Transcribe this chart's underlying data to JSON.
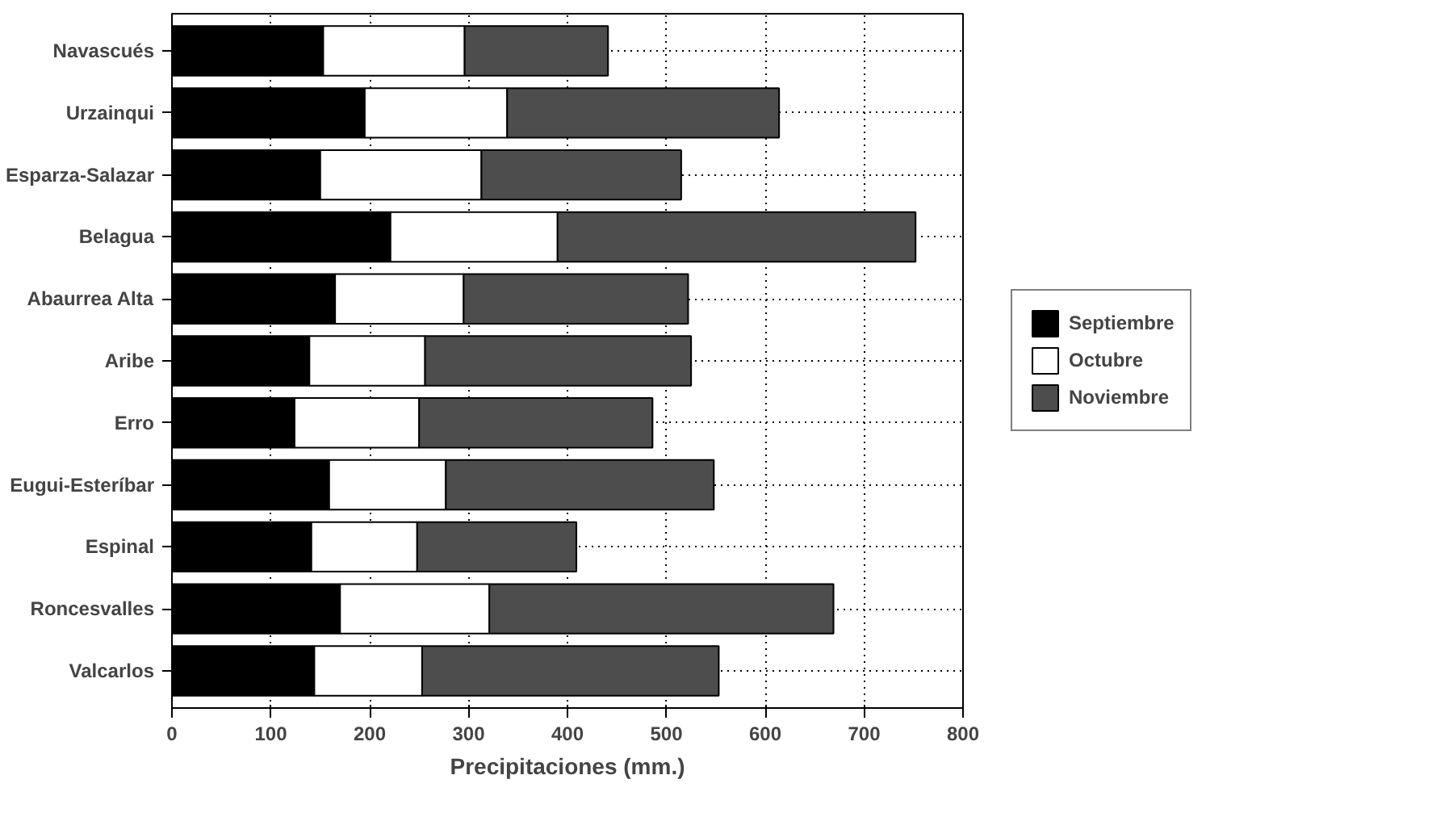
{
  "chart_data": {
    "type": "bar",
    "orientation": "horizontal",
    "stacked": true,
    "xlabel": "Precipitaciones (mm.)",
    "categories": [
      "Navascués",
      "Urzainqui",
      "Esparza-Salazar",
      "Belagua",
      "Abaurrea Alta",
      "Aribe",
      "Erro",
      "Eugui-Esteríbar",
      "Espinal",
      "Roncesvalles",
      "Valcarlos"
    ],
    "series": [
      {
        "name": "Septiembre",
        "color": "#000000",
        "values": [
          153,
          195,
          150,
          221,
          165,
          139,
          124,
          159,
          141,
          170,
          144
        ]
      },
      {
        "name": "Octubre",
        "color": "#ffffff",
        "values": [
          143,
          144,
          163,
          169,
          130,
          117,
          126,
          118,
          107,
          151,
          109
        ]
      },
      {
        "name": "Noviembre",
        "color": "#4d4d4d",
        "values": [
          145,
          275,
          202,
          362,
          227,
          269,
          236,
          271,
          161,
          348,
          300
        ]
      }
    ],
    "xlim": [
      0,
      800
    ],
    "xticks": [
      0,
      100,
      200,
      300,
      400,
      500,
      600,
      700,
      800
    ],
    "grid": true,
    "legend": "right"
  }
}
